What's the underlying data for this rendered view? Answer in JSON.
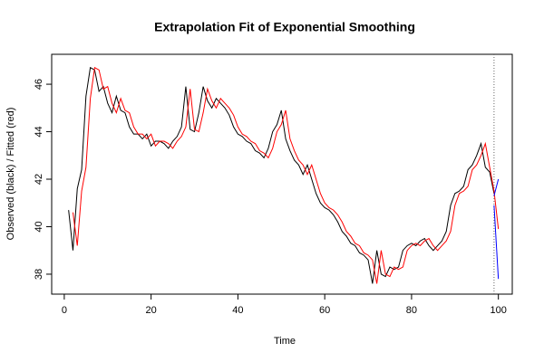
{
  "chart_data": {
    "type": "line",
    "title": "Extrapolation Fit of Exponential Smoothing",
    "x_label": "Time",
    "y_label": "Observed (black) / Fitted (red)",
    "xlim": [
      -2.9,
      103.2
    ],
    "xticks": [
      0,
      20,
      40,
      60,
      80,
      100
    ],
    "ylim": [
      37.16,
      47.26
    ],
    "yticks": [
      38,
      40,
      42,
      44,
      46
    ],
    "vlines": [
      99
    ],
    "series": [
      {
        "color": "#000000",
        "x": [
          1,
          2,
          3,
          4,
          5,
          6,
          7,
          8,
          9,
          10,
          11,
          12,
          13,
          14,
          15,
          16,
          17,
          18,
          19,
          20,
          21,
          22,
          23,
          24,
          25,
          26,
          27,
          28,
          29,
          30,
          31,
          32,
          33,
          34,
          35,
          36,
          37,
          38,
          39,
          40,
          41,
          42,
          43,
          44,
          45,
          46,
          47,
          48,
          49,
          50,
          51,
          52,
          53,
          54,
          55,
          56,
          57,
          58,
          59,
          60,
          61,
          62,
          63,
          64,
          65,
          66,
          67,
          68,
          69,
          70,
          71,
          72,
          73,
          74,
          75,
          76,
          77,
          78,
          79,
          80,
          81,
          82,
          83,
          84,
          85,
          86,
          87,
          88,
          89,
          90,
          91,
          92,
          93,
          94,
          95,
          96,
          97,
          98,
          99
        ],
        "values": [
          40.7,
          39.0,
          41.6,
          42.4,
          45.5,
          46.7,
          46.6,
          45.7,
          45.9,
          45.2,
          44.8,
          45.5,
          44.9,
          44.8,
          44.2,
          43.9,
          43.9,
          43.7,
          43.9,
          43.4,
          43.6,
          43.6,
          43.5,
          43.3,
          43.6,
          43.8,
          44.2,
          45.9,
          44.1,
          44.0,
          44.8,
          45.9,
          45.3,
          45.0,
          45.4,
          45.2,
          45.0,
          44.7,
          44.2,
          43.9,
          43.8,
          43.6,
          43.5,
          43.2,
          43.1,
          42.9,
          43.3,
          44.0,
          44.3,
          44.9,
          43.7,
          43.2,
          42.8,
          42.6,
          42.2,
          42.6,
          42.0,
          41.4,
          41.0,
          40.8,
          40.7,
          40.5,
          40.2,
          39.8,
          39.6,
          39.3,
          39.2,
          38.9,
          38.8,
          38.6,
          37.6,
          39.0,
          38.0,
          37.9,
          38.3,
          38.2,
          38.3,
          39.0,
          39.2,
          39.3,
          39.2,
          39.4,
          39.5,
          39.2,
          39.0,
          39.2,
          39.4,
          39.8,
          40.9,
          41.4,
          41.5,
          41.7,
          42.4,
          42.6,
          43.0,
          43.5,
          42.5,
          42.3,
          41.4
        ]
      },
      {
        "color": "#ff0000",
        "x": [
          2,
          3,
          4,
          5,
          6,
          7,
          8,
          9,
          10,
          11,
          12,
          13,
          14,
          15,
          16,
          17,
          18,
          19,
          20,
          21,
          22,
          23,
          24,
          25,
          26,
          27,
          28,
          29,
          30,
          31,
          32,
          33,
          34,
          35,
          36,
          37,
          38,
          39,
          40,
          41,
          42,
          43,
          44,
          45,
          46,
          47,
          48,
          49,
          50,
          51,
          52,
          53,
          54,
          55,
          56,
          57,
          58,
          59,
          60,
          61,
          62,
          63,
          64,
          65,
          66,
          67,
          68,
          69,
          70,
          71,
          72,
          73,
          74,
          75,
          76,
          77,
          78,
          79,
          80,
          81,
          82,
          83,
          84,
          85,
          86,
          87,
          88,
          89,
          90,
          91,
          92,
          93,
          94,
          95,
          96,
          97,
          98,
          99,
          100
        ],
        "values": [
          40.6,
          39.2,
          41.5,
          42.5,
          45.4,
          46.7,
          46.6,
          45.8,
          45.9,
          45.2,
          44.8,
          45.4,
          44.9,
          44.8,
          44.2,
          43.9,
          43.9,
          43.7,
          43.9,
          43.4,
          43.6,
          43.6,
          43.5,
          43.3,
          43.6,
          43.8,
          44.2,
          45.8,
          44.1,
          44.0,
          44.8,
          45.8,
          45.3,
          45.0,
          45.4,
          45.2,
          45.0,
          44.7,
          44.2,
          43.9,
          43.8,
          43.6,
          43.5,
          43.2,
          43.1,
          42.9,
          43.3,
          44.0,
          44.3,
          44.9,
          43.7,
          43.2,
          42.8,
          42.6,
          42.2,
          42.6,
          42.0,
          41.4,
          41.0,
          40.8,
          40.7,
          40.5,
          40.2,
          39.8,
          39.6,
          39.3,
          39.2,
          38.9,
          38.8,
          38.6,
          37.6,
          39.0,
          38.0,
          37.9,
          38.3,
          38.2,
          38.3,
          39.0,
          39.2,
          39.3,
          39.2,
          39.4,
          39.5,
          39.2,
          39.0,
          39.2,
          39.4,
          39.8,
          40.9,
          41.4,
          41.5,
          41.7,
          42.4,
          42.6,
          43.0,
          43.5,
          42.5,
          41.5,
          39.9
        ]
      },
      {
        "color": "#0000ff",
        "x": [
          99,
          100
        ],
        "values": [
          41.3,
          42.0
        ]
      },
      {
        "color": "#0000ff",
        "x": [
          99,
          100
        ],
        "values": [
          40.9,
          37.8
        ]
      }
    ]
  }
}
